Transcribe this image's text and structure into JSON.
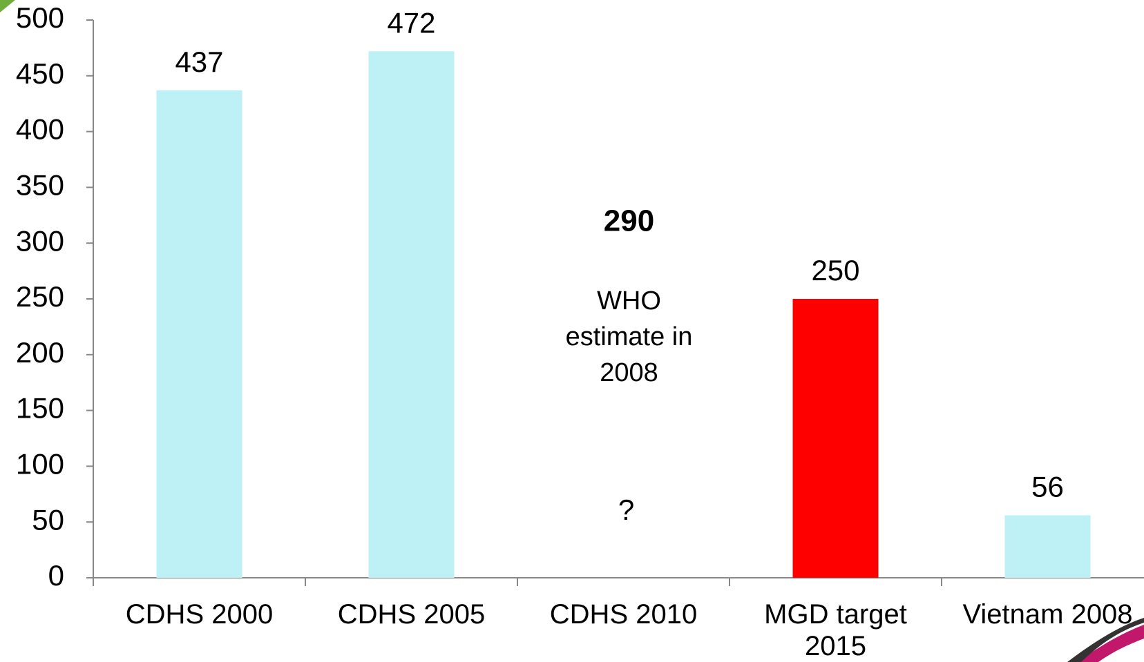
{
  "chart_data": {
    "type": "bar",
    "categories": [
      "CDHS 2000",
      "CDHS 2005",
      "CDHS 2010",
      "MGD target 2015",
      "Vietnam 2008"
    ],
    "values": [
      437,
      472,
      null,
      250,
      56
    ],
    "colors": [
      "#bdf1f5",
      "#bdf1f5",
      "#bdf1f5",
      "#ff0000",
      "#bdf1f5"
    ],
    "ylim": [
      0,
      500
    ],
    "yticks": [
      0,
      50,
      100,
      150,
      200,
      250,
      300,
      350,
      400,
      450,
      500
    ],
    "grid": false,
    "annotations": [
      "290",
      "WHO estimate in 2008",
      "?"
    ]
  }
}
